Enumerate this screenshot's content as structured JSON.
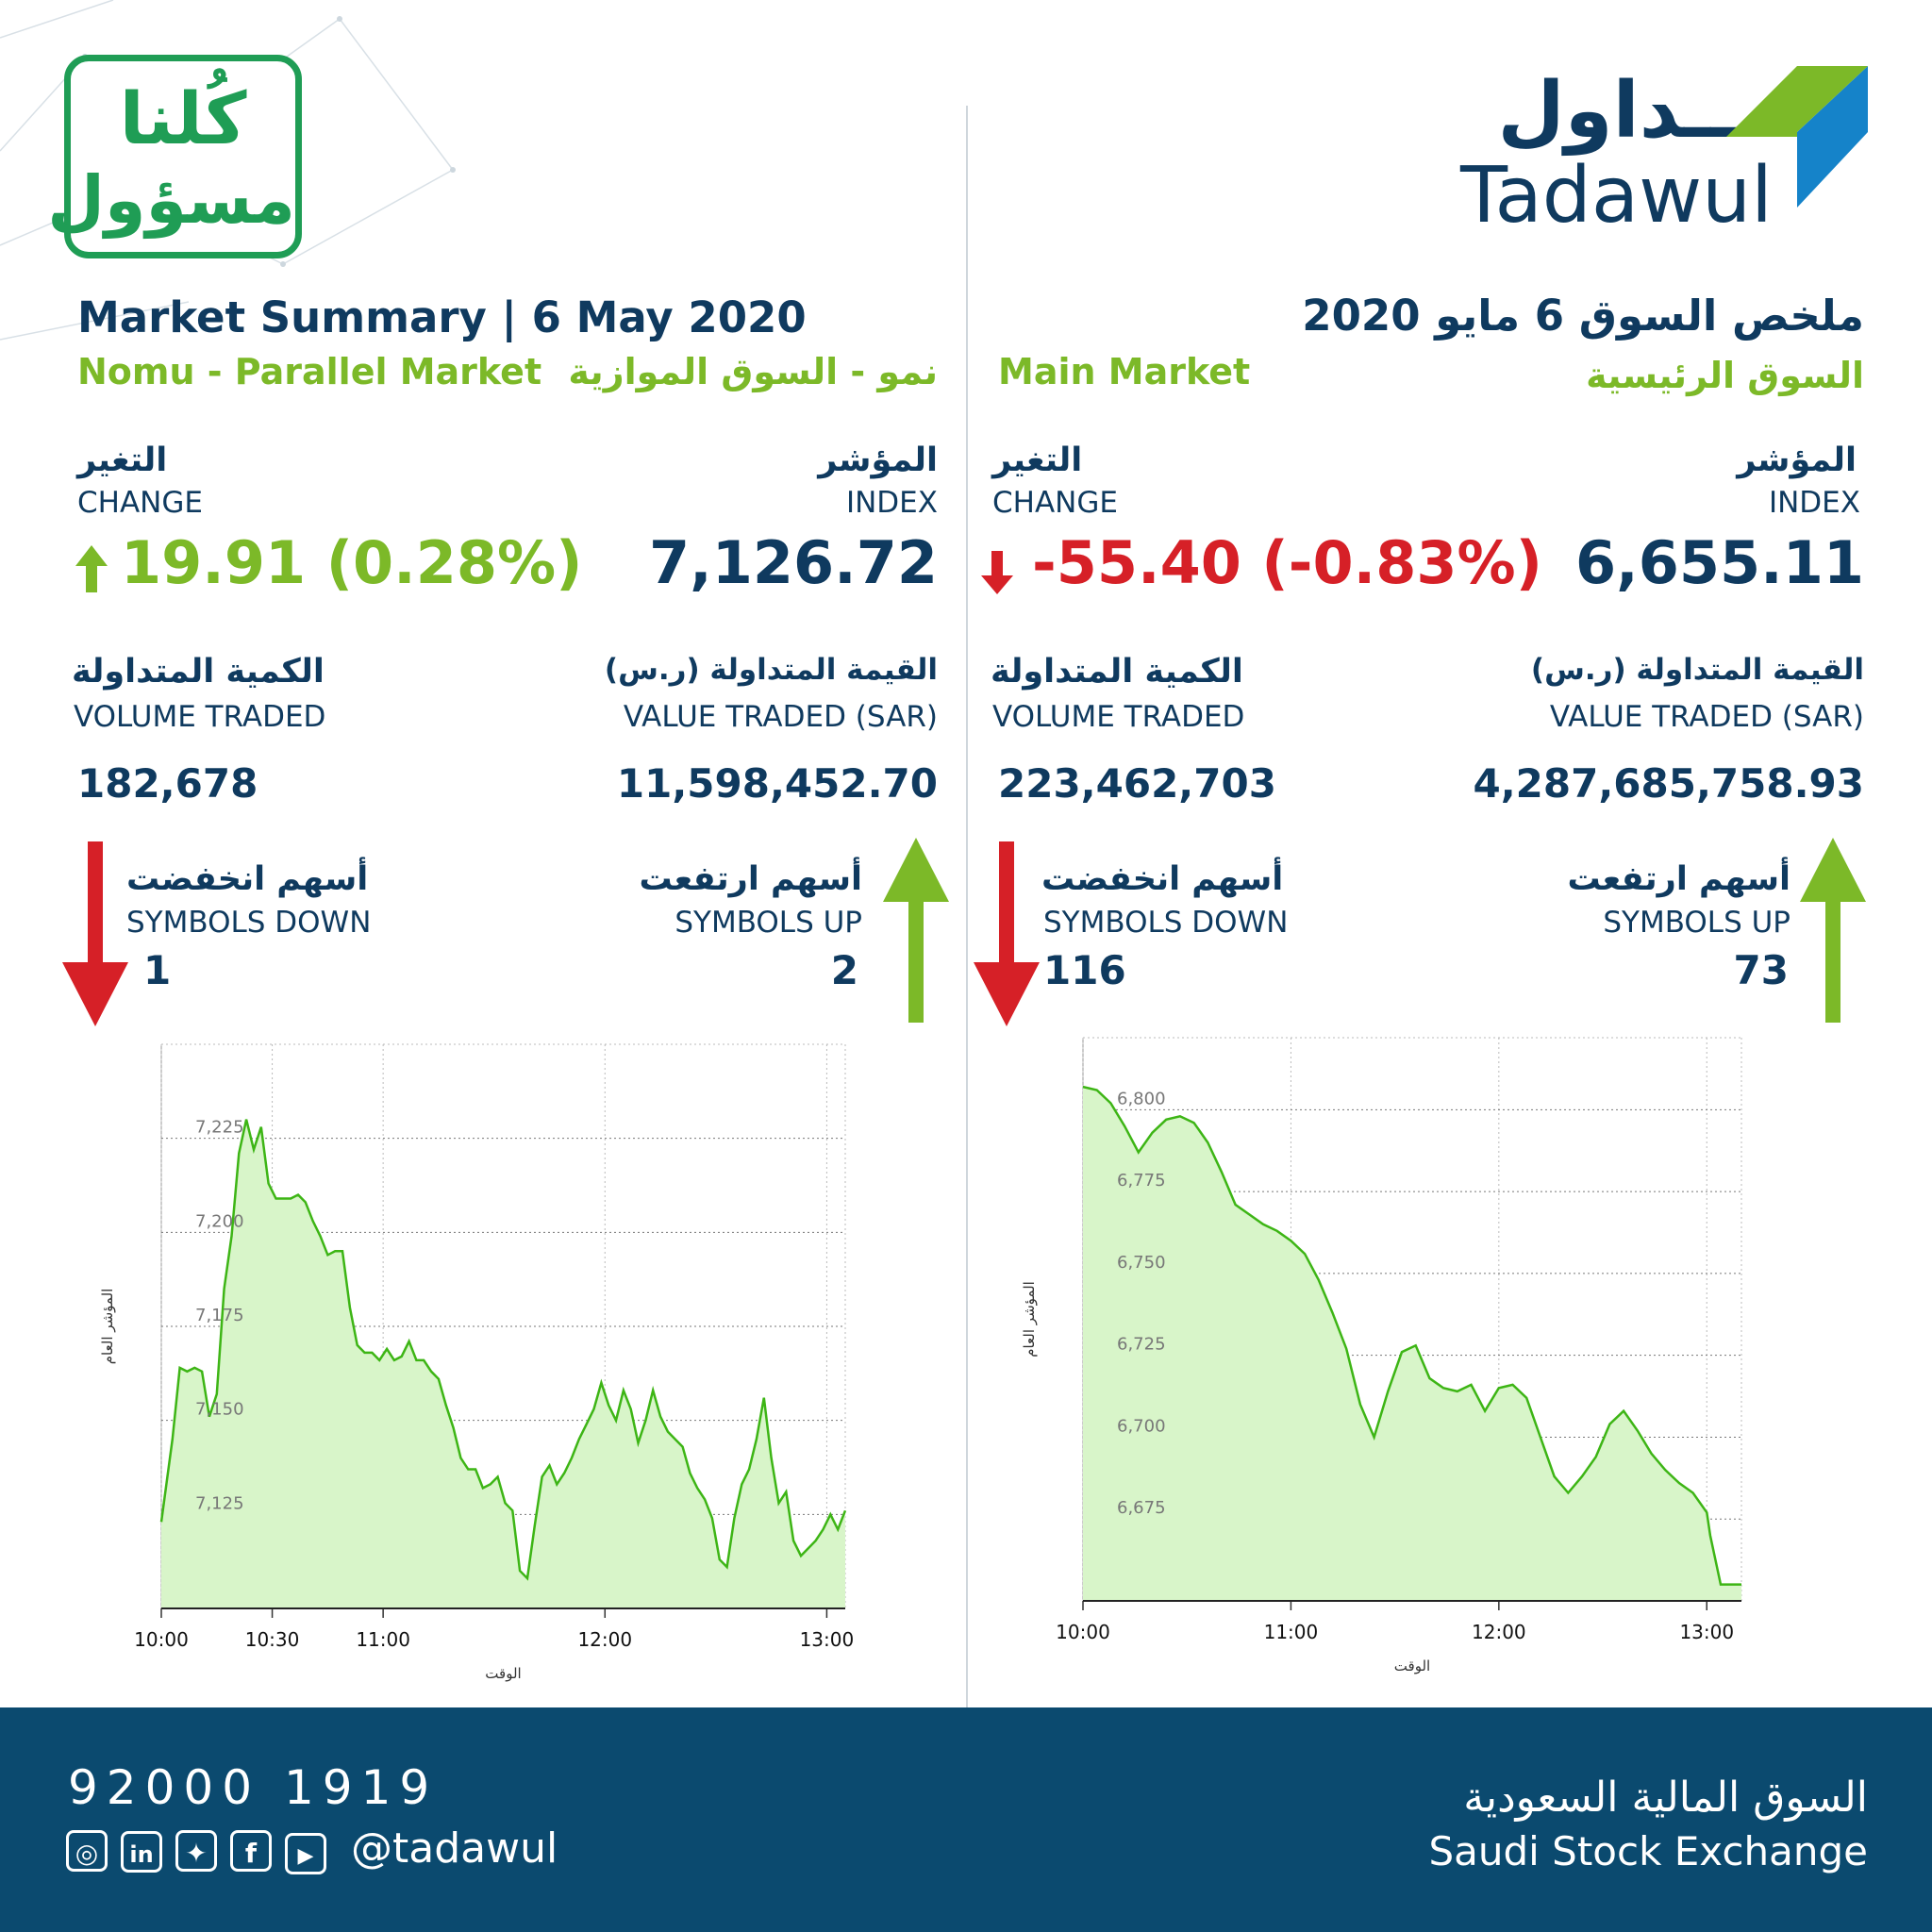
{
  "brand": {
    "logo_ar": "تـــداول",
    "logo_en": "Tadawul",
    "campaign_ar_line1": "كُلنا",
    "campaign_ar_line2": "مسؤول",
    "colors": {
      "navy": "#0f3a5f",
      "green": "#7cb928",
      "red": "#d62027",
      "footer": "#0b4a6f"
    }
  },
  "header": {
    "title_en": "Market Summary | 6 May 2020",
    "title_ar": "ملخص السوق 6 مايو 2020"
  },
  "nomu": {
    "name_en": "Nomu - Parallel Market",
    "name_ar": "نمو - السوق الموازية",
    "index_label_ar": "المؤشر",
    "index_label_en": "INDEX",
    "index_value": "7,126.72",
    "change_label_ar": "التغير",
    "change_label_en": "CHANGE",
    "change_value": "19.91 (0.28%)",
    "change_direction": "up",
    "value_label_ar": "القيمة المتداولة (ر.س)",
    "value_label_en": "VALUE TRADED (SAR)",
    "value_traded": "11,598,452.70",
    "volume_label_ar": "الكمية المتداولة",
    "volume_label_en": "VOLUME TRADED",
    "volume_traded": "182,678",
    "up_label_ar": "أسهم ارتفعت",
    "up_label_en": "SYMBOLS UP",
    "symbols_up": "2",
    "down_label_ar": "أسهم انخفضت",
    "down_label_en": "SYMBOLS DOWN",
    "symbols_down": "1"
  },
  "main": {
    "name_en": "Main Market",
    "name_ar": "السوق الرئيسية",
    "index_label_ar": "المؤشر",
    "index_label_en": "INDEX",
    "index_value": "6,655.11",
    "change_label_ar": "التغير",
    "change_label_en": "CHANGE",
    "change_value": "-55.40 (-0.83%)",
    "change_direction": "down",
    "value_label_ar": "القيمة المتداولة (ر.س)",
    "value_label_en": "VALUE TRADED (SAR)",
    "value_traded": "4,287,685,758.93",
    "volume_label_ar": "الكمية المتداولة",
    "volume_label_en": "VOLUME TRADED",
    "volume_traded": "223,462,703",
    "up_label_ar": "أسهم ارتفعت",
    "up_label_en": "SYMBOLS UP",
    "symbols_up": "73",
    "down_label_ar": "أسهم انخفضت",
    "down_label_en": "SYMBOLS DOWN",
    "symbols_down": "116"
  },
  "chart_data": [
    {
      "type": "area",
      "xlabel": "الوقت",
      "ylabel": "المؤشر العام",
      "x_ticks": [
        "10:00",
        "10:30",
        "11:00",
        "12:00",
        "13:00"
      ],
      "x_tick_values": [
        0,
        30,
        60,
        120,
        180
      ],
      "y_ticks": [
        "7,125",
        "7,150",
        "7,175",
        "7,200",
        "7,225"
      ],
      "y_tick_values": [
        7125,
        7150,
        7175,
        7200,
        7225
      ],
      "xlim": [
        0,
        185
      ],
      "ylim": [
        7100,
        7250
      ],
      "series": [
        {
          "x": [
            0,
            3,
            5,
            7,
            9,
            11,
            13,
            15,
            17,
            19,
            21,
            23,
            25,
            27,
            29,
            31,
            33,
            35,
            37,
            39,
            41,
            43,
            45,
            47,
            49,
            51,
            53,
            55,
            57,
            59,
            61,
            63,
            65,
            67,
            69,
            71,
            73,
            75,
            77,
            79,
            81,
            83,
            85,
            87,
            89,
            91,
            93,
            95,
            97,
            99,
            101,
            103,
            105,
            107,
            109,
            111,
            113,
            115,
            117,
            119,
            121,
            123,
            125,
            127,
            129,
            131,
            133,
            135,
            137,
            139,
            141,
            143,
            145,
            147,
            149,
            151,
            153,
            155,
            157,
            159,
            161,
            163,
            165,
            167,
            169,
            171,
            173,
            175,
            177,
            179,
            181,
            183,
            185
          ],
          "y": [
            7123,
            7145,
            7164,
            7163,
            7164,
            7163,
            7151,
            7157,
            7185,
            7199,
            7221,
            7230,
            7222,
            7228,
            7213,
            7209,
            7209,
            7209,
            7210,
            7208,
            7203,
            7199,
            7194,
            7195,
            7195,
            7180,
            7170,
            7168,
            7168,
            7166,
            7169,
            7166,
            7167,
            7171,
            7166,
            7166,
            7163,
            7161,
            7154,
            7148,
            7140,
            7137,
            7137,
            7132,
            7133,
            7135,
            7128,
            7126,
            7110,
            7108,
            7122,
            7135,
            7138,
            7133,
            7136,
            7140,
            7145,
            7149,
            7153,
            7160,
            7154,
            7150,
            7158,
            7153,
            7144,
            7150,
            7158,
            7151,
            7147,
            7145,
            7143,
            7136,
            7132,
            7129,
            7124,
            7113,
            7111,
            7124,
            7133,
            7137,
            7145,
            7156,
            7140,
            7128,
            7131,
            7118,
            7114,
            7116,
            7118,
            7121,
            7125,
            7121,
            7126
          ]
        }
      ]
    },
    {
      "type": "area",
      "xlabel": "الوقت",
      "ylabel": "المؤشر العام",
      "x_ticks": [
        "10:00",
        "11:00",
        "12:00",
        "13:00"
      ],
      "x_tick_values": [
        0,
        60,
        120,
        180
      ],
      "y_ticks": [
        "6,675",
        "6,700",
        "6,725",
        "6,750",
        "6,775",
        "6,800"
      ],
      "y_tick_values": [
        6675,
        6700,
        6725,
        6750,
        6775,
        6800
      ],
      "xlim": [
        0,
        190
      ],
      "ylim": [
        6650,
        6822
      ],
      "series": [
        {
          "x": [
            0,
            4,
            8,
            12,
            16,
            20,
            24,
            28,
            32,
            36,
            40,
            44,
            48,
            52,
            56,
            60,
            64,
            68,
            72,
            76,
            80,
            84,
            88,
            92,
            96,
            100,
            104,
            108,
            112,
            116,
            120,
            124,
            128,
            132,
            136,
            140,
            144,
            148,
            152,
            156,
            160,
            164,
            168,
            172,
            176,
            180,
            181,
            184,
            190
          ],
          "y": [
            6807,
            6806,
            6802,
            6795,
            6787,
            6793,
            6797,
            6798,
            6796,
            6790,
            6781,
            6771,
            6768,
            6765,
            6763,
            6760,
            6756,
            6748,
            6738,
            6727,
            6710,
            6700,
            6714,
            6726,
            6728,
            6718,
            6715,
            6714,
            6716,
            6708,
            6715,
            6716,
            6712,
            6700,
            6688,
            6683,
            6688,
            6694,
            6704,
            6708,
            6702,
            6695,
            6690,
            6686,
            6683,
            6677,
            6670,
            6655,
            6655
          ]
        }
      ]
    }
  ],
  "footer": {
    "phone": "92000 1919",
    "handle": "@tadawul",
    "exchange_ar": "السوق المالية السعودية",
    "exchange_en": "Saudi Stock Exchange"
  }
}
